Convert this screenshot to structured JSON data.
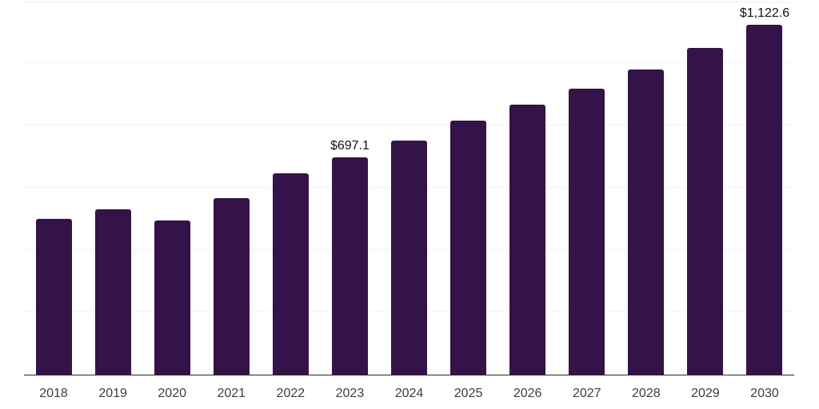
{
  "chart_data": {
    "type": "bar",
    "categories": [
      "2018",
      "2019",
      "2020",
      "2021",
      "2022",
      "2023",
      "2024",
      "2025",
      "2026",
      "2027",
      "2028",
      "2029",
      "2030"
    ],
    "values": [
      500,
      531,
      495,
      567,
      646,
      697.1,
      751,
      815,
      867,
      918,
      980,
      1049,
      1122.6
    ],
    "bar_labels": [
      "",
      "",
      "",
      "",
      "",
      "$697.1",
      "",
      "",
      "",
      "",
      "",
      "",
      "$1,122.6"
    ],
    "title": "",
    "xlabel": "",
    "ylabel": "",
    "ylim": [
      0,
      1200
    ],
    "gridline_step": 200,
    "grid": "horizontal-only, no y-axis tick labels",
    "legend": "none"
  },
  "styles": {
    "bar_color": "#331349",
    "grid_color": "#f2f2f2",
    "axis_color": "#262626",
    "value_label_color": "#111111",
    "tick_color": "#3d3d3d",
    "background": "#ffffff"
  }
}
